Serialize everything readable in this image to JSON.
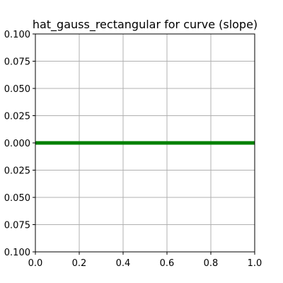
{
  "chart_data": {
    "type": "line",
    "title": "hat_gauss_rectangular for curve (slope)",
    "xlabel": "",
    "ylabel": "",
    "xlim": [
      0.0,
      1.0
    ],
    "ylim": [
      -0.1,
      0.1
    ],
    "grid": true,
    "x_ticks": [
      "0.0",
      "0.2",
      "0.4",
      "0.6",
      "0.8",
      "1.0"
    ],
    "y_ticks": [
      "0.100",
      "0.075",
      "0.050",
      "0.025",
      "0.000",
      "0.025",
      "0.050",
      "0.075",
      "0.100"
    ],
    "series": [
      {
        "x": [
          0.0,
          1.0
        ],
        "values": [
          0.001,
          0.001
        ],
        "color": "#008000"
      },
      {
        "x": [
          0.0,
          1.0
        ],
        "values": [
          -0.001,
          -0.001
        ],
        "color": "#008000"
      },
      {
        "x": [
          0.0,
          1.0
        ],
        "values": [
          0.0,
          0.0
        ],
        "color": "#008000"
      }
    ]
  }
}
